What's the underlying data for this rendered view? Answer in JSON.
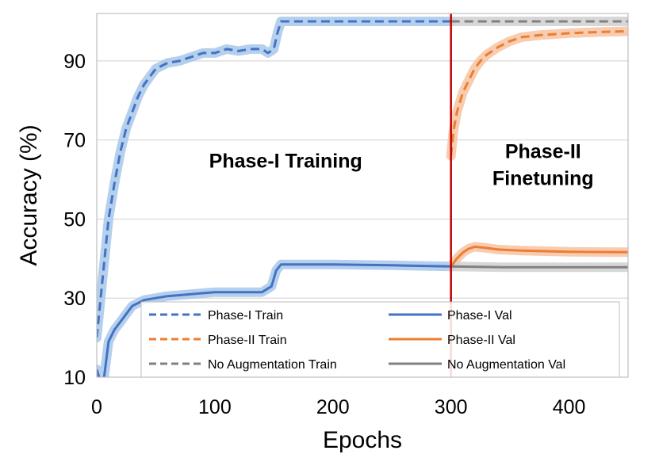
{
  "chart_data": {
    "type": "line",
    "title": "",
    "xlabel": "Epochs",
    "ylabel": "Accuracy (%)",
    "xlim": [
      0,
      450
    ],
    "ylim": [
      10,
      102
    ],
    "x_ticks": [
      0,
      100,
      200,
      300,
      400
    ],
    "y_ticks": [
      10,
      30,
      50,
      70,
      90
    ],
    "grid": "y-major",
    "divider_epoch": 300,
    "annotations": [
      {
        "id": "phase1",
        "lines": [
          "Phase-I Training"
        ],
        "x": 160,
        "y": 63
      },
      {
        "id": "phase2",
        "lines": [
          "Phase-II",
          "Finetuning"
        ],
        "x": 378,
        "y": 63
      }
    ],
    "legend_position": "bottom-center",
    "series": [
      {
        "id": "p1_train",
        "name": "Phase-I Train",
        "color": "#4472c4",
        "band_color": "#a8c8ea",
        "dashed": true,
        "x": [
          0,
          5,
          10,
          15,
          20,
          25,
          30,
          35,
          40,
          45,
          50,
          60,
          70,
          80,
          90,
          100,
          110,
          120,
          130,
          140,
          145,
          150,
          153,
          156,
          160,
          200,
          250,
          300
        ],
        "y": [
          20,
          35,
          50,
          59,
          67,
          73,
          77,
          81,
          84,
          86,
          88,
          89.5,
          90,
          91,
          92,
          92,
          93,
          92.5,
          93,
          93,
          92,
          93,
          97,
          100,
          100,
          100,
          100,
          100
        ]
      },
      {
        "id": "p1_val",
        "name": "Phase-I Val",
        "color": "#4472c4",
        "band_color": "#a8c8ea",
        "dashed": false,
        "x": [
          0,
          5,
          10,
          15,
          20,
          25,
          30,
          40,
          50,
          60,
          80,
          100,
          120,
          140,
          148,
          152,
          156,
          160,
          200,
          250,
          300
        ],
        "y": [
          12,
          7,
          19,
          22,
          24,
          26,
          28,
          29.5,
          30,
          30.5,
          31,
          31.5,
          31.5,
          31.5,
          33,
          37,
          38.5,
          38.5,
          38.5,
          38.3,
          38
        ]
      },
      {
        "id": "p2_train",
        "name": "Phase-II Train",
        "color": "#ed7d31",
        "band_color": "#f7c3a2",
        "dashed": true,
        "x": [
          300,
          302,
          305,
          310,
          315,
          320,
          325,
          330,
          340,
          350,
          360,
          375,
          400,
          425,
          450
        ],
        "y": [
          66,
          72,
          77,
          82,
          85,
          88,
          90,
          91.5,
          93.5,
          95,
          96,
          96.5,
          97,
          97.3,
          97.5
        ]
      },
      {
        "id": "p2_val",
        "name": "Phase-II Val",
        "color": "#ed7d31",
        "band_color": "#f7c3a2",
        "dashed": false,
        "x": [
          300,
          305,
          310,
          315,
          320,
          330,
          340,
          360,
          400,
          450
        ],
        "y": [
          38,
          40,
          41.5,
          42.5,
          43,
          42.7,
          42.3,
          42,
          41.7,
          41.6
        ]
      },
      {
        "id": "na_train",
        "name": "No Augmentation Train",
        "color": "#808080",
        "band_color": "#d0d0d0",
        "dashed": true,
        "x": [
          300,
          450
        ],
        "y": [
          100,
          100
        ]
      },
      {
        "id": "na_val",
        "name": "No Augmentation Val",
        "color": "#808080",
        "band_color": "#d0d0d0",
        "dashed": false,
        "x": [
          300,
          350,
          400,
          450
        ],
        "y": [
          38,
          37.8,
          37.8,
          37.8
        ]
      }
    ],
    "legend": [
      [
        "Phase-I Train",
        "Phase-I Val"
      ],
      [
        "Phase-II Train",
        "Phase-II Val"
      ],
      [
        "No Augmentation Train",
        "No Augmentation Val"
      ]
    ]
  }
}
